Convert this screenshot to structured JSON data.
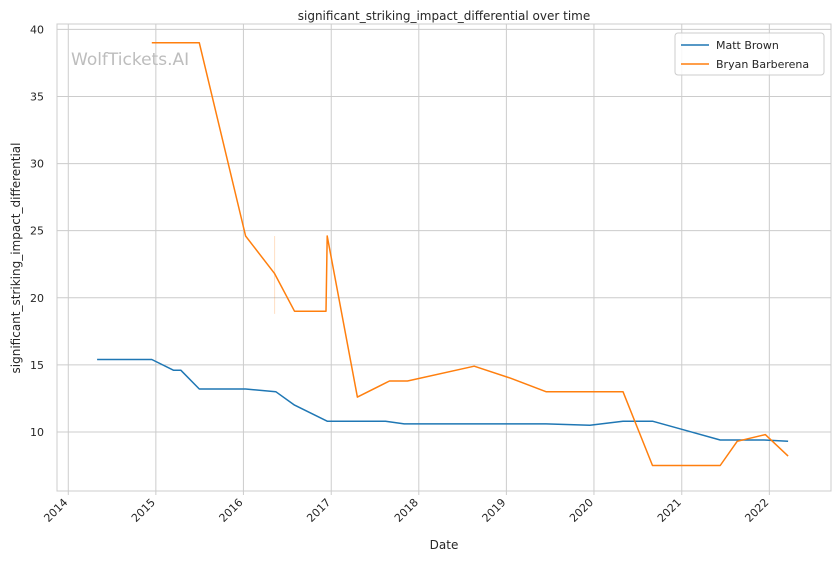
{
  "chart_data": {
    "type": "line",
    "title": "significant_striking_impact_differential over time",
    "xlabel": "Date",
    "ylabel": "significant_striking_impact_differential",
    "watermark": "WolfTickets.AI",
    "xlim": [
      "2013-11-15",
      "2022-09-15"
    ],
    "ylim": [
      5.6,
      40.4
    ],
    "x_ticks": [
      "2014-01-01",
      "2015-01-01",
      "2016-01-01",
      "2017-01-01",
      "2018-01-01",
      "2019-01-01",
      "2020-01-01",
      "2021-01-01",
      "2022-01-01"
    ],
    "x_tick_labels": [
      "2014",
      "2015",
      "2016",
      "2017",
      "2018",
      "2019",
      "2020",
      "2021",
      "2022"
    ],
    "y_ticks": [
      10,
      15,
      20,
      25,
      30,
      35,
      40
    ],
    "y_tick_labels": [
      "10",
      "15",
      "20",
      "25",
      "30",
      "35",
      "40"
    ],
    "grid": true,
    "legend_position": "top-right",
    "series": [
      {
        "name": "Matt Brown",
        "color": "#1f77b4",
        "points": [
          [
            "2014-05-01",
            15.4
          ],
          [
            "2014-12-15",
            15.4
          ],
          [
            "2015-03-15",
            14.6
          ],
          [
            "2015-04-15",
            14.6
          ],
          [
            "2015-07-01",
            13.2
          ],
          [
            "2016-01-10",
            13.2
          ],
          [
            "2016-05-15",
            13.0
          ],
          [
            "2016-08-01",
            12.0
          ],
          [
            "2016-12-15",
            10.8
          ],
          [
            "2017-08-15",
            10.8
          ],
          [
            "2017-11-01",
            10.6
          ],
          [
            "2019-06-15",
            10.6
          ],
          [
            "2019-12-15",
            10.5
          ],
          [
            "2020-05-01",
            10.8
          ],
          [
            "2020-09-01",
            10.8
          ],
          [
            "2021-01-01",
            10.2
          ],
          [
            "2021-06-10",
            9.4
          ],
          [
            "2021-12-10",
            9.4
          ],
          [
            "2022-03-20",
            9.3
          ]
        ]
      },
      {
        "name": "Bryan Barberena",
        "color": "#ff7f0e",
        "points": [
          [
            "2014-12-15",
            39.0
          ],
          [
            "2015-07-01",
            39.0
          ],
          [
            "2016-01-10",
            24.6
          ],
          [
            "2016-05-10",
            21.8
          ],
          [
            "2016-08-01",
            19.0
          ],
          [
            "2016-12-10",
            19.0
          ],
          [
            "2016-12-15",
            24.6
          ],
          [
            "2017-04-20",
            12.6
          ],
          [
            "2017-09-01",
            13.8
          ],
          [
            "2017-11-15",
            13.8
          ],
          [
            "2018-08-20",
            14.9
          ],
          [
            "2019-01-20",
            14.0
          ],
          [
            "2019-06-15",
            13.0
          ],
          [
            "2020-05-01",
            13.0
          ],
          [
            "2020-09-01",
            7.5
          ],
          [
            "2021-06-10",
            7.5
          ],
          [
            "2021-08-20",
            9.3
          ],
          [
            "2021-12-15",
            9.8
          ],
          [
            "2022-03-20",
            8.2
          ]
        ]
      }
    ]
  }
}
